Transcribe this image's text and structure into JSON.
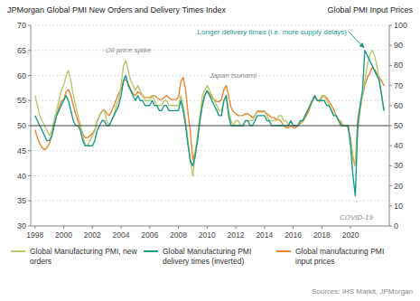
{
  "chart_data": {
    "type": "line",
    "ylabel": "JPMorgan Global PMI New Orders and Delivery Times Index",
    "y2label": "Global PMI Input Prices",
    "annotations": [
      "Oil price spike",
      "Japan tsunami",
      "Longer delivery times (i.e. more supply delays)",
      "COVID-19",
      "Sources: IHS Markit, JPMorgan"
    ],
    "xlim": [
      1997.7,
      2022.7
    ],
    "xticks": [
      1998,
      2000,
      2002,
      2004,
      2006,
      2008,
      2010,
      2012,
      2014,
      2016,
      2018,
      2020
    ],
    "ylim": [
      30,
      70
    ],
    "yticks": [
      30,
      35,
      40,
      45,
      50,
      55,
      60,
      65,
      70
    ],
    "y2lim": [
      0,
      100
    ],
    "y2ticks": [
      0,
      10,
      20,
      30,
      40,
      50,
      60,
      70,
      80,
      90,
      100
    ],
    "grid": true,
    "legend": "bottom",
    "hline": {
      "value": 50,
      "color": "#444444"
    },
    "x": [
      1998.0,
      1998.17,
      1998.33,
      1998.5,
      1998.67,
      1998.83,
      1999.0,
      1999.17,
      1999.33,
      1999.5,
      1999.67,
      1999.83,
      2000.0,
      2000.17,
      2000.33,
      2000.5,
      2000.67,
      2000.83,
      2001.0,
      2001.17,
      2001.33,
      2001.5,
      2001.67,
      2001.83,
      2002.0,
      2002.17,
      2002.33,
      2002.5,
      2002.67,
      2002.83,
      2003.0,
      2003.17,
      2003.33,
      2003.5,
      2003.67,
      2003.83,
      2004.0,
      2004.17,
      2004.33,
      2004.5,
      2004.67,
      2004.83,
      2005.0,
      2005.17,
      2005.33,
      2005.5,
      2005.67,
      2005.83,
      2006.0,
      2006.17,
      2006.33,
      2006.5,
      2006.67,
      2006.83,
      2007.0,
      2007.17,
      2007.33,
      2007.5,
      2007.67,
      2007.83,
      2008.0,
      2008.17,
      2008.33,
      2008.5,
      2008.67,
      2008.83,
      2009.0,
      2009.17,
      2009.33,
      2009.5,
      2009.67,
      2009.83,
      2010.0,
      2010.17,
      2010.33,
      2010.5,
      2010.67,
      2010.83,
      2011.0,
      2011.17,
      2011.33,
      2011.5,
      2011.67,
      2011.83,
      2012.0,
      2012.17,
      2012.33,
      2012.5,
      2012.67,
      2012.83,
      2013.0,
      2013.17,
      2013.33,
      2013.5,
      2013.67,
      2013.83,
      2014.0,
      2014.17,
      2014.33,
      2014.5,
      2014.67,
      2014.83,
      2015.0,
      2015.17,
      2015.33,
      2015.5,
      2015.67,
      2015.83,
      2016.0,
      2016.17,
      2016.33,
      2016.5,
      2016.67,
      2016.83,
      2017.0,
      2017.17,
      2017.33,
      2017.5,
      2017.67,
      2017.83,
      2018.0,
      2018.17,
      2018.33,
      2018.5,
      2018.67,
      2018.83,
      2019.0,
      2019.17,
      2019.33,
      2019.5,
      2019.67,
      2019.83,
      2020.0,
      2020.17,
      2020.33,
      2020.5,
      2020.67,
      2020.83,
      2021.0,
      2021.17,
      2021.33,
      2021.5,
      2021.67,
      2021.83,
      2022.0,
      2022.17,
      2022.33
    ],
    "series": [
      {
        "name": "Global Manufacturing PMI, new\norders",
        "color": "#b8c96e",
        "values": [
          56,
          54,
          52,
          51,
          50,
          49,
          48,
          49,
          51,
          53,
          55,
          57,
          58,
          60,
          61,
          59,
          56,
          54,
          52,
          50,
          48,
          46,
          46,
          47,
          48,
          49,
          51,
          52,
          53,
          53,
          51,
          50,
          51,
          52,
          54,
          55,
          58,
          62,
          63,
          61,
          59,
          58,
          57,
          58,
          57,
          56,
          55,
          55,
          55,
          56,
          55,
          54,
          54,
          54,
          55,
          55,
          54,
          54,
          54,
          54,
          54,
          56,
          54,
          51,
          47,
          43,
          40,
          44,
          48,
          52,
          56,
          57,
          58,
          57,
          56,
          55,
          54,
          53,
          53,
          55,
          56,
          53,
          51,
          50,
          51,
          51,
          50,
          50,
          51,
          51,
          51,
          51,
          52,
          53,
          53,
          53,
          53,
          52,
          51,
          51,
          51,
          51,
          52,
          52,
          51,
          51,
          50,
          51,
          50,
          50,
          50,
          51,
          51,
          52,
          53,
          54,
          55,
          56,
          55,
          55,
          56,
          56,
          55,
          54,
          53,
          52,
          52,
          51,
          51,
          50,
          50,
          50,
          47,
          44,
          42,
          49,
          53,
          56,
          59,
          62,
          64,
          65,
          64,
          62,
          59,
          56,
          53
        ]
      },
      {
        "name": "Global Manufacturing PMI\ndelivery times (inverted)",
        "color": "#1a9a8a",
        "values": [
          52,
          51,
          50,
          49,
          48,
          47,
          47,
          48,
          50,
          52,
          53,
          54,
          55,
          56,
          55,
          53,
          51,
          50,
          50,
          49,
          47,
          46,
          46,
          46,
          46,
          47,
          49,
          50,
          51,
          51,
          50,
          50,
          51,
          52,
          53,
          54,
          56,
          59,
          60,
          58,
          57,
          56,
          55,
          56,
          55,
          55,
          54,
          54,
          54,
          55,
          54,
          54,
          53,
          53,
          54,
          54,
          53,
          53,
          53,
          53,
          53,
          55,
          53,
          50,
          46,
          43,
          42,
          44,
          47,
          51,
          54,
          56,
          57,
          56,
          55,
          54,
          53,
          52,
          52,
          55,
          56,
          52,
          50,
          50,
          50,
          50,
          50,
          50,
          51,
          51,
          50,
          50,
          51,
          52,
          52,
          52,
          52,
          51,
          51,
          50,
          50,
          50,
          50,
          50,
          50,
          50,
          50,
          51,
          50,
          50,
          50,
          51,
          51,
          52,
          53,
          54,
          55,
          56,
          55,
          55,
          55,
          55,
          54,
          54,
          53,
          52,
          52,
          51,
          50,
          50,
          50,
          50,
          46,
          40,
          36,
          50,
          54,
          57,
          65,
          64,
          63,
          62,
          61,
          60,
          59,
          56,
          53
        ]
      },
      {
        "name": "Global manufacturing PMI\ninput prices",
        "color": "#e88530",
        "axis": "y2",
        "values": [
          48,
          44,
          41,
          39,
          38,
          39,
          41,
          45,
          50,
          55,
          59,
          62,
          63,
          67,
          68,
          65,
          60,
          56,
          52,
          49,
          46,
          44,
          44,
          45,
          46,
          48,
          52,
          55,
          57,
          58,
          56,
          55,
          57,
          60,
          63,
          66,
          68,
          72,
          73,
          71,
          68,
          66,
          65,
          67,
          66,
          65,
          64,
          64,
          64,
          65,
          65,
          64,
          63,
          63,
          64,
          65,
          64,
          63,
          63,
          63,
          64,
          72,
          74,
          68,
          56,
          47,
          33,
          37,
          44,
          54,
          61,
          65,
          67,
          66,
          64,
          63,
          62,
          62,
          63,
          68,
          70,
          65,
          59,
          57,
          56,
          55,
          55,
          55,
          56,
          56,
          55,
          54,
          55,
          57,
          57,
          57,
          57,
          56,
          55,
          54,
          54,
          53,
          53,
          52,
          50,
          49,
          49,
          50,
          49,
          49,
          50,
          51,
          52,
          54,
          56,
          59,
          62,
          64,
          63,
          62,
          64,
          65,
          64,
          62,
          60,
          58,
          55,
          53,
          51,
          50,
          50,
          49,
          44,
          33,
          30,
          53,
          60,
          65,
          70,
          74,
          76,
          79,
          78,
          76,
          74,
          72,
          70
        ]
      }
    ]
  }
}
